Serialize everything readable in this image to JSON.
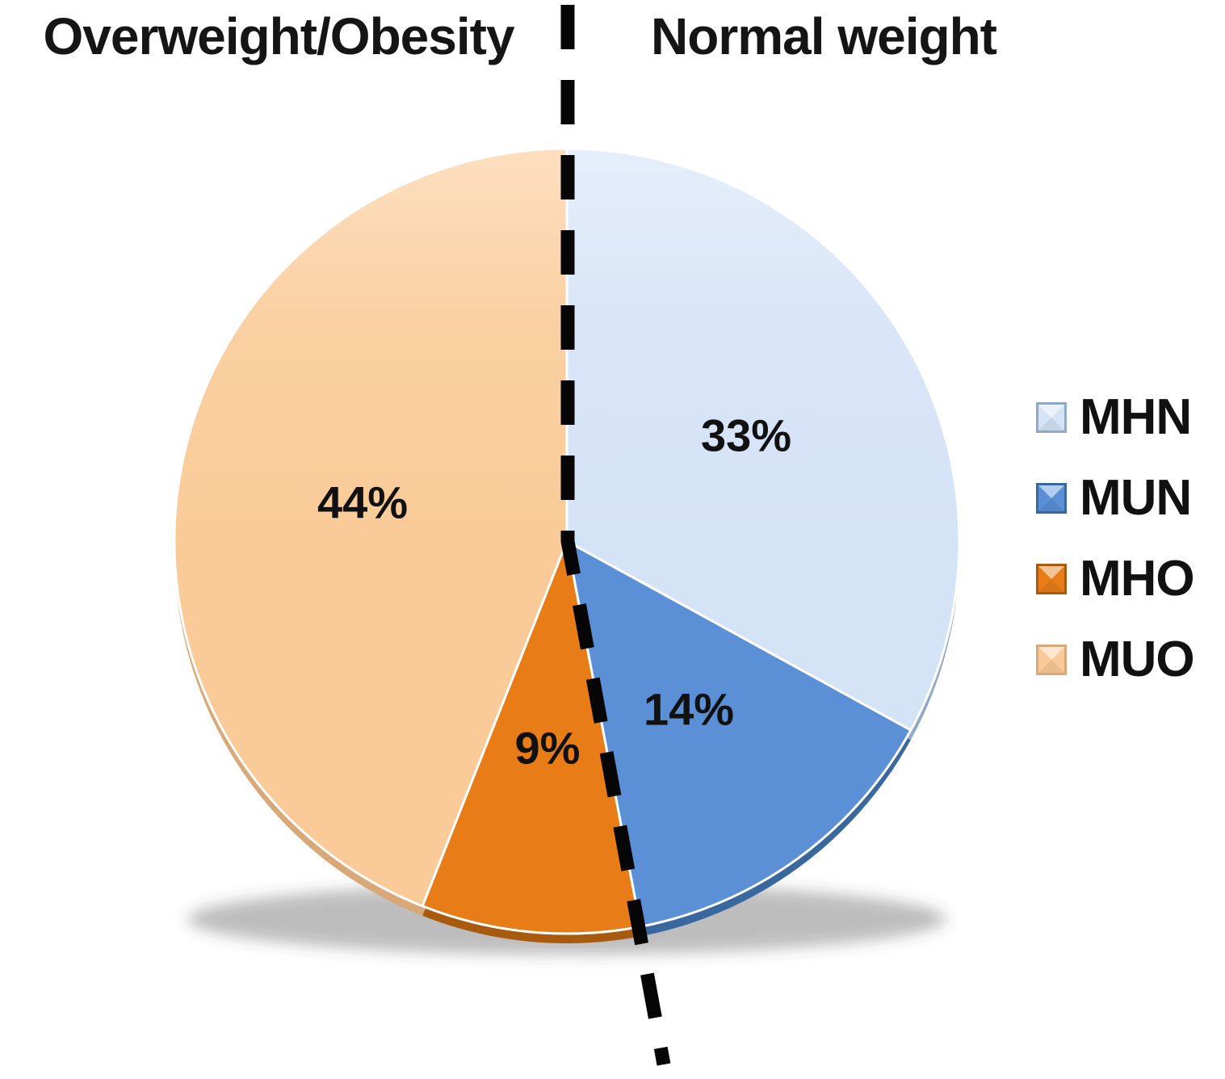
{
  "titles": {
    "left": "Overweight/Obesity",
    "right": "Normal weight"
  },
  "chart_data": {
    "type": "pie",
    "categories": [
      "MHN",
      "MUN",
      "MHO",
      "MUO"
    ],
    "values": [
      33,
      14,
      9,
      44
    ],
    "value_labels": [
      "33%",
      "14%",
      "9%",
      "44%"
    ],
    "colors": [
      "#D5E3F7",
      "#5B90D6",
      "#E87D17",
      "#FACB98"
    ],
    "shade_colors": [
      "#90A9C8",
      "#39689F",
      "#A85A0E",
      "#D8A878"
    ],
    "start_angle_deg": 0,
    "direction": "clockwise",
    "legend_position": "right",
    "annotations": {
      "left_half_label": "Overweight/Obesity",
      "right_half_label": "Normal weight"
    }
  },
  "legend": {
    "items": [
      {
        "label": "MHN"
      },
      {
        "label": "MUN"
      },
      {
        "label": "MHO"
      },
      {
        "label": "MUO"
      }
    ]
  }
}
